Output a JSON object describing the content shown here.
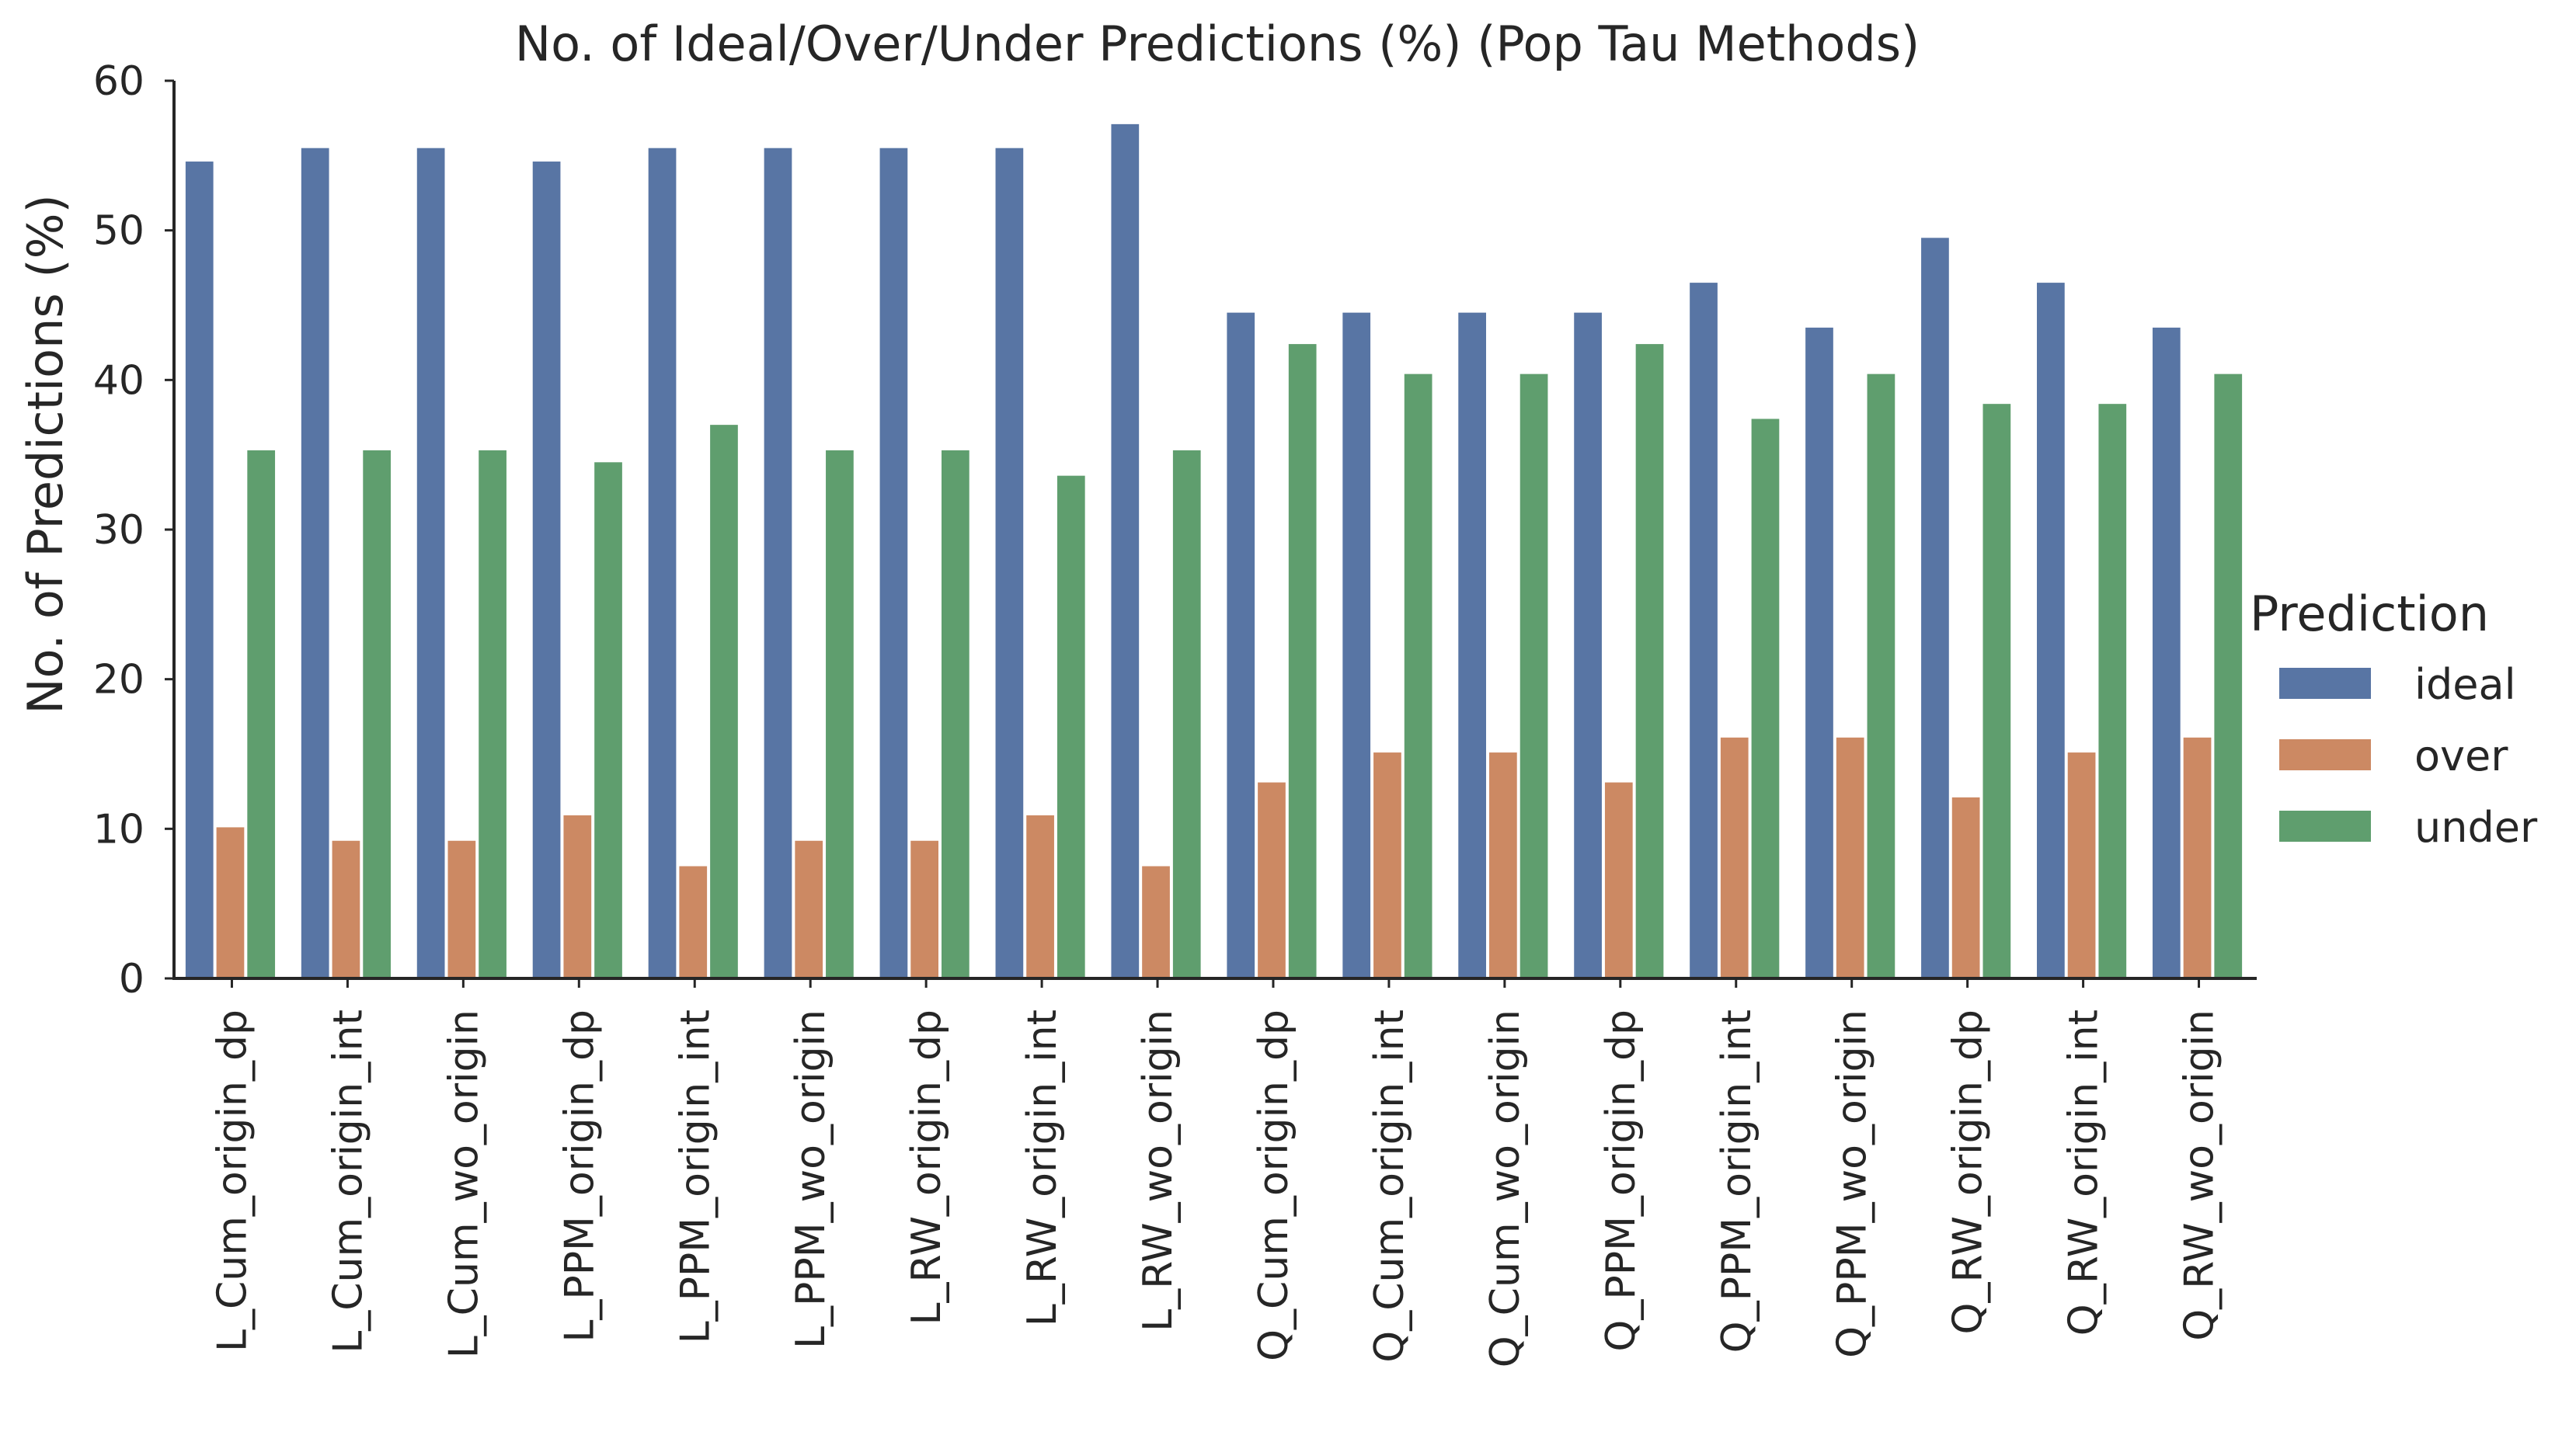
{
  "chart_data": {
    "type": "bar",
    "title": "No. of Ideal/Over/Under Predictions (%) (Pop Tau Methods)",
    "xlabel": "",
    "ylabel": "No. of Predictions (%)",
    "ylim": [
      0,
      60
    ],
    "yticks": [
      0,
      10,
      20,
      30,
      40,
      50,
      60
    ],
    "grid": false,
    "legend": {
      "title": "Prediction",
      "placement": "right"
    },
    "categories": [
      "L_Cum_origin_dp",
      "L_Cum_origin_int",
      "L_Cum_wo_origin",
      "L_PPM_origin_dp",
      "L_PPM_origin_int",
      "L_PPM_wo_origin",
      "L_RW_origin_dp",
      "L_RW_origin_int",
      "L_RW_wo_origin",
      "Q_Cum_origin_dp",
      "Q_Cum_origin_int",
      "Q_Cum_wo_origin",
      "Q_PPM_origin_dp",
      "Q_PPM_origin_int",
      "Q_PPM_wo_origin",
      "Q_RW_origin_dp",
      "Q_RW_origin_int",
      "Q_RW_wo_origin"
    ],
    "series": [
      {
        "name": "ideal",
        "color": "#5875a4",
        "values": [
          54.6,
          55.5,
          55.5,
          54.6,
          55.5,
          55.5,
          55.5,
          55.5,
          57.1,
          44.5,
          44.5,
          44.5,
          44.5,
          46.5,
          43.5,
          49.5,
          46.5,
          43.5
        ]
      },
      {
        "name": "over",
        "color": "#cc8963",
        "values": [
          10.1,
          9.2,
          9.2,
          10.9,
          7.5,
          9.2,
          9.2,
          10.9,
          7.5,
          13.1,
          15.1,
          15.1,
          13.1,
          16.1,
          16.1,
          12.1,
          15.1,
          16.1
        ]
      },
      {
        "name": "under",
        "color": "#5f9e6e",
        "values": [
          35.3,
          35.3,
          35.3,
          34.5,
          37.0,
          35.3,
          35.3,
          33.6,
          35.3,
          42.4,
          40.4,
          40.4,
          42.4,
          37.4,
          40.4,
          38.4,
          38.4,
          40.4
        ]
      }
    ]
  }
}
